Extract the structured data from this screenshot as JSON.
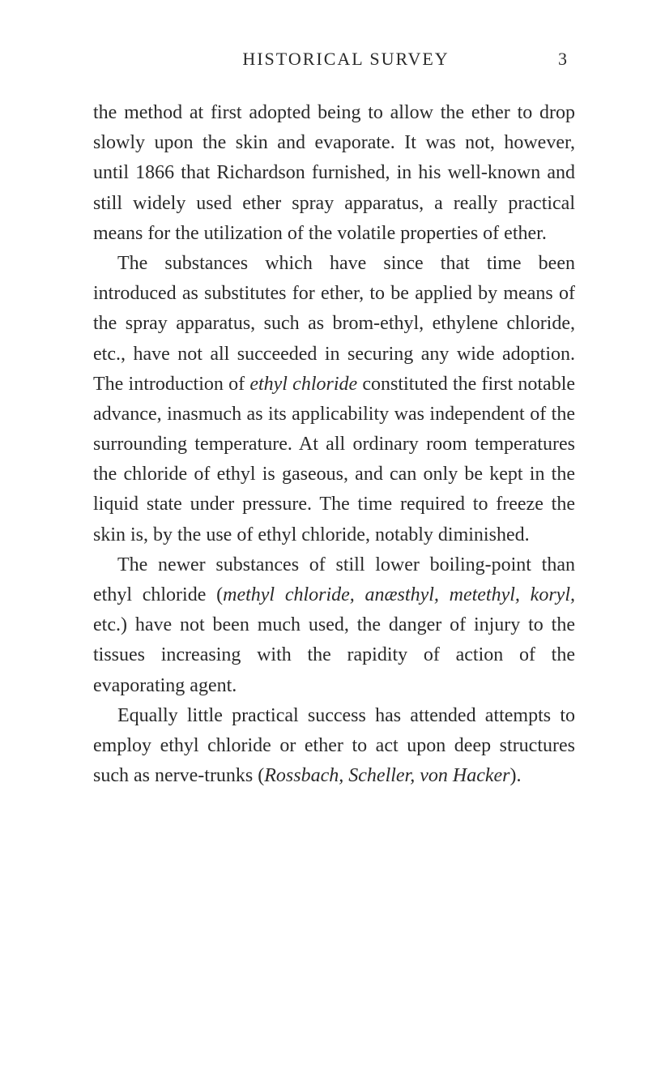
{
  "header": {
    "title": "HISTORICAL SURVEY",
    "page_number": "3"
  },
  "paragraphs": {
    "p1_part1": "the method at first adopted being to allow the ether to drop slowly upon the skin and evaporate. It was not, however, until 1866 that Richardson furnished, in his well-known and still widely used ether spray apparatus, a really practical means for the utilization of the volatile properties of ether.",
    "p2_part1": "The substances which have since that time been introduced as substitutes for ether, to be applied by means of the spray apparatus, such as brom-ethyl, ethylene chloride, etc., have not all succeeded in securing any wide adoption. The introduction of ",
    "p2_italic1": "ethyl chloride",
    "p2_part2": " constituted the first notable advance, inasmuch as its applicability was independent of the surrounding temperature. At all ordinary room temperatures the chloride of ethyl is gaseous, and can only be kept in the liquid state under pressure. The time required to freeze the skin is, by the use of ethyl chloride, notably diminished.",
    "p3_part1": "The newer substances of still lower boiling-point than ethyl chloride (",
    "p3_italic1": "methyl chloride, anæsthyl, metethyl, koryl,",
    "p3_part2": " etc.) have not been much used, the danger of injury to the tissues increasing with the rapidity of action of the evaporating agent.",
    "p4_part1": "Equally little practical success has attended attempts to employ ethyl chloride or ether to act upon deep structures such as nerve-trunks (",
    "p4_italic1": "Rossbach, Scheller, von Hacker",
    "p4_part2": ")."
  }
}
